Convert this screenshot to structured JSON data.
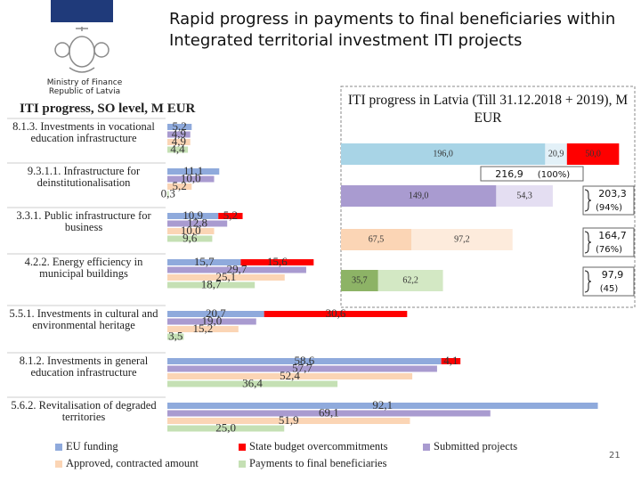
{
  "header": {
    "title": "Rapid progress in payments to final beneficiaries within Integrated territorial investment ITI projects",
    "ministry": [
      "Ministry of Finance",
      "Republic of Latvia"
    ]
  },
  "page_number": "21",
  "chart_data": [
    {
      "type": "grouped_hbar",
      "title": "ITI progress, SO level, M EUR",
      "categories": [
        "8.1.3. Investments in vocational education infrastructure",
        "9.3.1.1. Infrastructure for deinstitutionalisation",
        "3.3.1. Public infrastructure for business",
        "4.2.2. Energy efficiency in municipal buildings",
        "5.5.1. Investments in cultural and environmental heritage",
        "8.1.2. Investments in general education infrastructure",
        "5.6.2. Revitalisation of degraded territories"
      ],
      "xlim": [
        0,
        100
      ],
      "series": [
        {
          "name": "EU funding",
          "color": "#8faadc",
          "values": [
            5.2,
            11.1,
            10.9,
            15.7,
            20.7,
            58.6,
            92.1
          ],
          "value_labels": [
            "5,2",
            "11,1",
            "10,9",
            "15,7",
            "20,7",
            "58,6",
            "92,1"
          ]
        },
        {
          "name": "State budget overcommitments",
          "color": "#ff0000",
          "stack_on": 0,
          "values": [
            null,
            null,
            5.2,
            15.6,
            30.6,
            4.1,
            null
          ],
          "value_labels": [
            null,
            null,
            "5,2",
            "15,6",
            "30,6",
            "4,1",
            null
          ]
        },
        {
          "name": "Submitted projects",
          "color": "#a99bd0",
          "values": [
            4.9,
            10.0,
            12.8,
            29.7,
            19.0,
            57.7,
            69.1
          ],
          "value_labels": [
            "4,9",
            "10,0",
            "12,8",
            "29,7",
            "19,0",
            "57,7",
            "69,1"
          ]
        },
        {
          "name": "Approved, contracted amount",
          "color": "#fbd5b5",
          "values": [
            4.9,
            5.2,
            10.0,
            25.1,
            15.2,
            52.4,
            51.9
          ],
          "value_labels": [
            "4,9",
            "5,2",
            "10,0",
            "25,1",
            "15,2",
            "52,4",
            "51,9"
          ]
        },
        {
          "name": "Payments to final beneficiaries",
          "color": "#c5e0b4",
          "values": [
            4.4,
            0.3,
            9.6,
            18.7,
            3.5,
            36.4,
            25.0
          ],
          "value_labels": [
            "4,4",
            "0,3",
            "9,6",
            "18,7",
            "3,5",
            "36,4",
            "25,0"
          ]
        }
      ]
    },
    {
      "type": "stacked_hbar",
      "title": "ITI progress in Latvia (Till 31.12.2018 + 2019), M EUR",
      "xlim": [
        0,
        282
      ],
      "bars": [
        {
          "values": [
            196.0,
            20.9,
            50.0
          ],
          "value_labels": [
            "196,0",
            "20,9",
            "50,0"
          ],
          "colors": [
            "#a8d4e6",
            "#e3f1f8",
            "#ff0000"
          ]
        },
        {
          "values": [
            149.0,
            54.3
          ],
          "value_labels": [
            "149,0",
            "54,3"
          ],
          "colors": [
            "#a99bd0",
            "#e4def2"
          ]
        },
        {
          "values": [
            67.5,
            97.2
          ],
          "value_labels": [
            "67,5",
            "97,2"
          ],
          "colors": [
            "#fbd5b5",
            "#fdebdc"
          ]
        },
        {
          "values": [
            35.7,
            62.2
          ],
          "value_labels": [
            "35,7",
            "62,2"
          ],
          "colors": [
            "#8db366",
            "#d3e8c4"
          ]
        }
      ],
      "totals": [
        {
          "value": 216.9,
          "label": "216,9"
        },
        {
          "value": 203.3,
          "label": "203,3"
        },
        {
          "value": 164.7,
          "label": "164,7"
        },
        {
          "value": 97.9,
          "label": "97,9"
        }
      ],
      "shares": [
        "(100%)",
        "(94%)",
        "(76%)",
        "(45)"
      ]
    }
  ]
}
